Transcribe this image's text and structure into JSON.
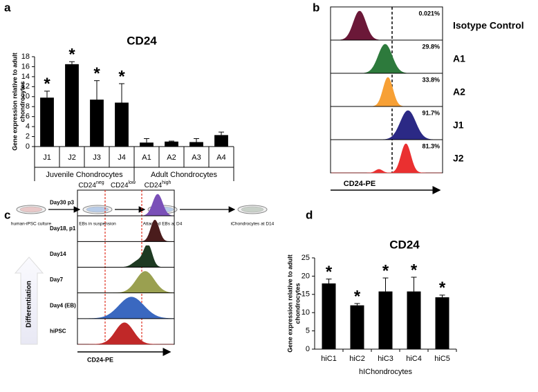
{
  "chart_data": [
    {
      "type": "bar",
      "panel_label": "a",
      "title": "CD24",
      "y_label": [
        "Gene expression relative to adult",
        "chondrocytes"
      ],
      "categories": [
        "J1",
        "J2",
        "J3",
        "J4",
        "A1",
        "A2",
        "A3",
        "A4"
      ],
      "groups": [
        "Juvenile Chondrocytes",
        "Adult Chondrocytes"
      ],
      "values": [
        9.8,
        16.5,
        9.4,
        8.8,
        0.8,
        1.0,
        0.9,
        2.3
      ],
      "errors": [
        1.3,
        0.5,
        3.8,
        3.8,
        0.8,
        0.1,
        0.7,
        0.6
      ],
      "significance": [
        "*",
        "*",
        "*",
        "*",
        null,
        null,
        null,
        null
      ],
      "color": "#000000",
      "ylim": [
        0,
        18
      ],
      "yticks": [
        0,
        2,
        4,
        6,
        8,
        10,
        12,
        14,
        16,
        18
      ]
    },
    {
      "type": "bar",
      "panel_label": "d",
      "title": "CD24",
      "y_label": [
        "Gene expression relative to adult",
        "chondrocytes"
      ],
      "x_label": "hIChondrocytes",
      "categories": [
        "hiC1",
        "hiC2",
        "hiC3",
        "hiC4",
        "hiC5"
      ],
      "values": [
        18.0,
        12.0,
        15.8,
        15.8,
        14.2
      ],
      "errors": [
        1.2,
        0.5,
        3.7,
        3.9,
        0.6
      ],
      "significance": [
        "*",
        "*",
        "*",
        "*",
        "*"
      ],
      "color": "#000000",
      "ylim": [
        0,
        25
      ],
      "yticks": [
        0,
        5,
        10,
        15,
        20,
        25
      ]
    }
  ],
  "panel_b": {
    "panel_label": "b",
    "axis_label": "CD24-PE",
    "rows": [
      {
        "label": "Isotype Control",
        "percent": "0.021%"
      },
      {
        "label": "A1",
        "percent": "29.8%"
      },
      {
        "label": "A2",
        "percent": "33.8%"
      },
      {
        "label": "J1",
        "percent": "91.7%"
      },
      {
        "label": "J2",
        "percent": "81.3%"
      }
    ]
  },
  "panel_c": {
    "panel_label": "c",
    "workflow": [
      "human-iPSC culture",
      "EBs in suspension",
      "Attached EBs at D4",
      "iChondrocytes at D14"
    ],
    "gates": [
      {
        "base": "CD24",
        "sup": "neg"
      },
      {
        "base": "CD24",
        "sup": "low"
      },
      {
        "base": "CD24",
        "sup": "high"
      }
    ],
    "rows": [
      "Day30 p3",
      "Day18, p1",
      "Day14",
      "Day7",
      "Day4 (EB)",
      "hiPSC"
    ],
    "arrow_label": "Differentiation",
    "axis_label": "CD24-PE"
  }
}
